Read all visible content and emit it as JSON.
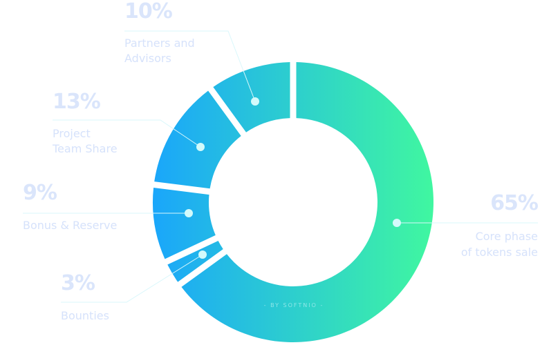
{
  "chart_data": {
    "type": "pie",
    "variant": "donut",
    "slices": [
      {
        "label": "Core phase of tokens sale",
        "lines": [
          "Core phase",
          "of tokens sale"
        ],
        "value": 65,
        "value_label": "65%"
      },
      {
        "label": "Bounties",
        "lines": [
          "Bounties"
        ],
        "value": 3,
        "value_label": "3%"
      },
      {
        "label": "Bonus & Reserve",
        "lines": [
          "Bonus & Reserve"
        ],
        "value": 9,
        "value_label": "9%"
      },
      {
        "label": "Project Team Share",
        "lines": [
          "Project",
          "Team Share"
        ],
        "value": 13,
        "value_label": "13%"
      },
      {
        "label": "Partners and Advisors",
        "lines": [
          "Partners and",
          "Advisors"
        ],
        "value": 10,
        "value_label": "10%"
      }
    ],
    "gradient": [
      "#1aa6fb",
      "#40f7a0"
    ],
    "label_color": "#dae5fb",
    "start": "top",
    "direction": "clockwise"
  },
  "credit": "- BY SOFTNIO -"
}
